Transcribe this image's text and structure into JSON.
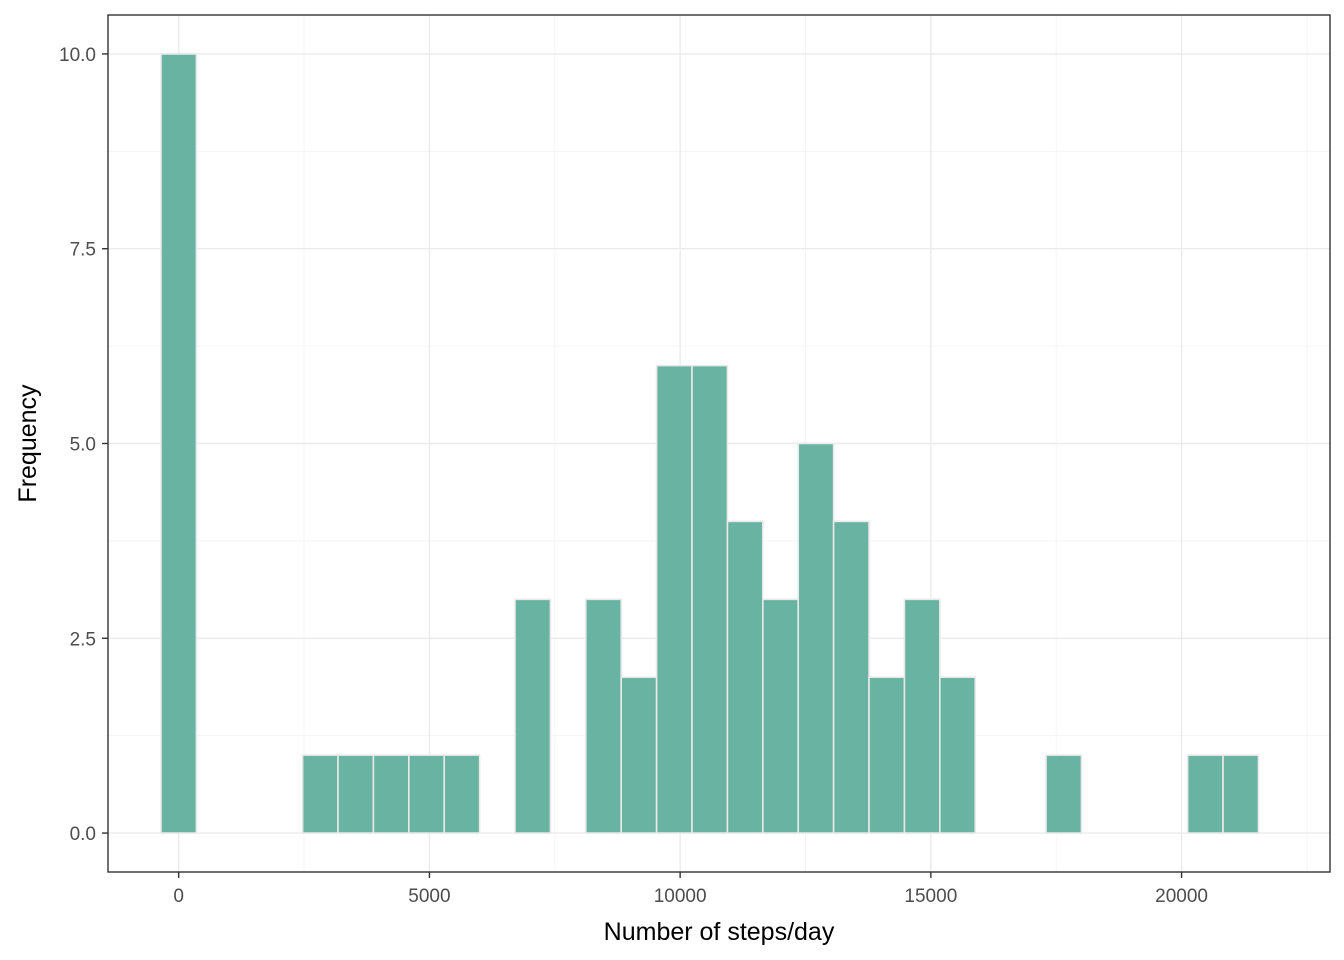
{
  "colors": {
    "bar_fill": "#69b3a2",
    "bar_stroke": "#e9e9e9",
    "grid_major": "#ebebeb",
    "grid_minor": "#f5f5f5",
    "panel_border": "#333333",
    "axis_text": "#4d4d4d",
    "axis_title": "#000000"
  },
  "chart_data": {
    "type": "bar",
    "xlabel": "Number of steps/day",
    "ylabel": "Frequency",
    "xlim": [
      -1410,
      22960
    ],
    "ylim": [
      -0.5,
      10.5
    ],
    "x_ticks": [
      0,
      5000,
      10000,
      15000,
      20000
    ],
    "x_tick_labels": [
      "0",
      "5000",
      "10000",
      "15000",
      "20000"
    ],
    "y_ticks": [
      0,
      2.5,
      5,
      7.5,
      10
    ],
    "y_tick_labels": [
      "0.0",
      "2.5",
      "5.0",
      "7.5",
      "10.0"
    ],
    "grid": true,
    "bin_width": 706,
    "bins": [
      {
        "x": 0,
        "count": 10
      },
      {
        "x": 2824,
        "count": 1
      },
      {
        "x": 3530,
        "count": 1
      },
      {
        "x": 4236,
        "count": 1
      },
      {
        "x": 4942,
        "count": 1
      },
      {
        "x": 5648,
        "count": 1
      },
      {
        "x": 7060,
        "count": 3
      },
      {
        "x": 8472,
        "count": 3
      },
      {
        "x": 9178,
        "count": 2
      },
      {
        "x": 9884,
        "count": 6
      },
      {
        "x": 10590,
        "count": 6
      },
      {
        "x": 11296,
        "count": 4
      },
      {
        "x": 12002,
        "count": 3
      },
      {
        "x": 12708,
        "count": 5
      },
      {
        "x": 13414,
        "count": 4
      },
      {
        "x": 14120,
        "count": 2
      },
      {
        "x": 14826,
        "count": 3
      },
      {
        "x": 15532,
        "count": 2
      },
      {
        "x": 17650,
        "count": 1
      },
      {
        "x": 20474,
        "count": 1
      },
      {
        "x": 21180,
        "count": 1
      }
    ]
  }
}
